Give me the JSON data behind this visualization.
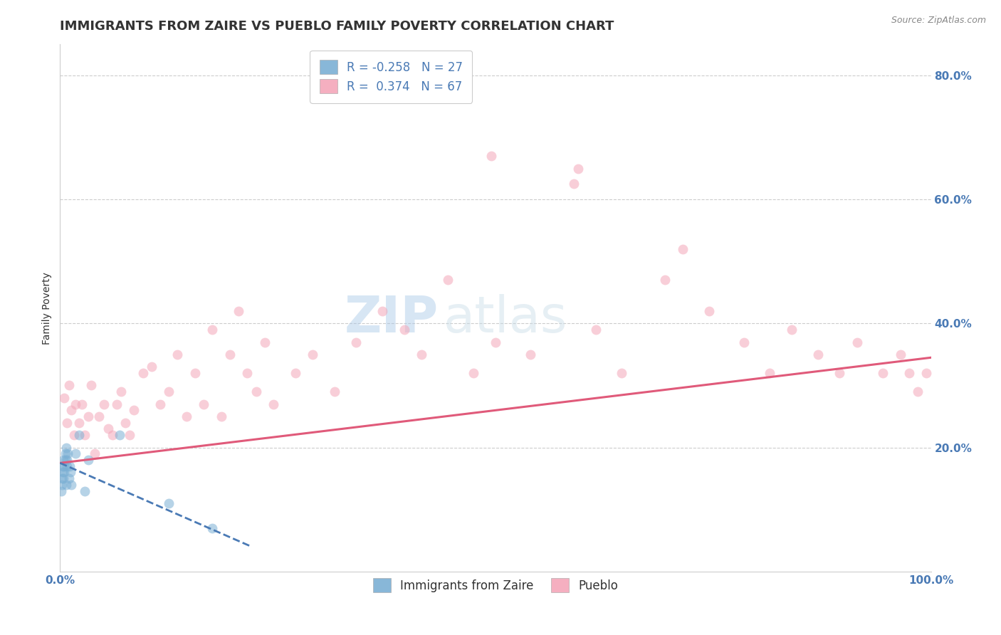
{
  "title": "IMMIGRANTS FROM ZAIRE VS PUEBLO FAMILY POVERTY CORRELATION CHART",
  "source_text": "Source: ZipAtlas.com",
  "ylabel": "Family Poverty",
  "watermark_zip": "ZIP",
  "watermark_atlas": "atlas",
  "x_min": 0.0,
  "x_max": 1.0,
  "y_min": 0.0,
  "y_max": 0.85,
  "x_ticks": [
    0.0,
    1.0
  ],
  "x_tick_labels": [
    "0.0%",
    "100.0%"
  ],
  "y_ticks": [
    0.2,
    0.4,
    0.6,
    0.8
  ],
  "y_tick_labels": [
    "20.0%",
    "40.0%",
    "60.0%",
    "80.0%"
  ],
  "grid_color": "#cccccc",
  "background_color": "#ffffff",
  "blue_color": "#7bafd4",
  "pink_color": "#f4a7b9",
  "blue_line_color": "#4a7ab5",
  "pink_line_color": "#e05a7a",
  "legend_r_blue": "R = -0.258",
  "legend_n_blue": "N = 27",
  "legend_r_pink": "R =  0.374",
  "legend_n_pink": "N = 67",
  "blue_scatter_x": [
    0.001,
    0.002,
    0.002,
    0.003,
    0.003,
    0.004,
    0.004,
    0.005,
    0.005,
    0.006,
    0.006,
    0.007,
    0.007,
    0.008,
    0.008,
    0.009,
    0.01,
    0.011,
    0.012,
    0.013,
    0.018,
    0.022,
    0.028,
    0.032,
    0.068,
    0.125,
    0.175
  ],
  "blue_scatter_y": [
    0.13,
    0.14,
    0.15,
    0.16,
    0.17,
    0.15,
    0.18,
    0.16,
    0.17,
    0.18,
    0.19,
    0.14,
    0.2,
    0.17,
    0.18,
    0.19,
    0.15,
    0.17,
    0.16,
    0.14,
    0.19,
    0.22,
    0.13,
    0.18,
    0.22,
    0.11,
    0.07
  ],
  "pink_scatter_x": [
    0.005,
    0.008,
    0.01,
    0.013,
    0.016,
    0.018,
    0.022,
    0.025,
    0.028,
    0.032,
    0.036,
    0.04,
    0.045,
    0.05,
    0.055,
    0.06,
    0.065,
    0.07,
    0.075,
    0.08,
    0.085,
    0.095,
    0.105,
    0.115,
    0.125,
    0.135,
    0.145,
    0.155,
    0.165,
    0.175,
    0.185,
    0.195,
    0.205,
    0.215,
    0.225,
    0.235,
    0.245,
    0.27,
    0.29,
    0.315,
    0.34,
    0.37,
    0.395,
    0.415,
    0.445,
    0.475,
    0.5,
    0.54,
    0.59,
    0.615,
    0.645,
    0.695,
    0.715,
    0.745,
    0.785,
    0.815,
    0.84,
    0.87,
    0.895,
    0.915,
    0.945,
    0.965,
    0.975,
    0.985,
    0.995,
    0.495,
    0.595
  ],
  "pink_scatter_y": [
    0.28,
    0.24,
    0.3,
    0.26,
    0.22,
    0.27,
    0.24,
    0.27,
    0.22,
    0.25,
    0.3,
    0.19,
    0.25,
    0.27,
    0.23,
    0.22,
    0.27,
    0.29,
    0.24,
    0.22,
    0.26,
    0.32,
    0.33,
    0.27,
    0.29,
    0.35,
    0.25,
    0.32,
    0.27,
    0.39,
    0.25,
    0.35,
    0.42,
    0.32,
    0.29,
    0.37,
    0.27,
    0.32,
    0.35,
    0.29,
    0.37,
    0.42,
    0.39,
    0.35,
    0.47,
    0.32,
    0.37,
    0.35,
    0.625,
    0.39,
    0.32,
    0.47,
    0.52,
    0.42,
    0.37,
    0.32,
    0.39,
    0.35,
    0.32,
    0.37,
    0.32,
    0.35,
    0.32,
    0.29,
    0.32,
    0.67,
    0.65
  ],
  "blue_trend_x": [
    0.0,
    0.22
  ],
  "blue_trend_y_start": 0.175,
  "blue_trend_y_end": 0.04,
  "pink_trend_x": [
    0.0,
    1.0
  ],
  "pink_trend_y_start": 0.175,
  "pink_trend_y_end": 0.345,
  "title_fontsize": 13,
  "axis_label_fontsize": 10,
  "tick_fontsize": 11,
  "legend_fontsize": 12,
  "watermark_fontsize_zip": 52,
  "watermark_fontsize_atlas": 52,
  "scatter_size": 100,
  "scatter_alpha": 0.55
}
